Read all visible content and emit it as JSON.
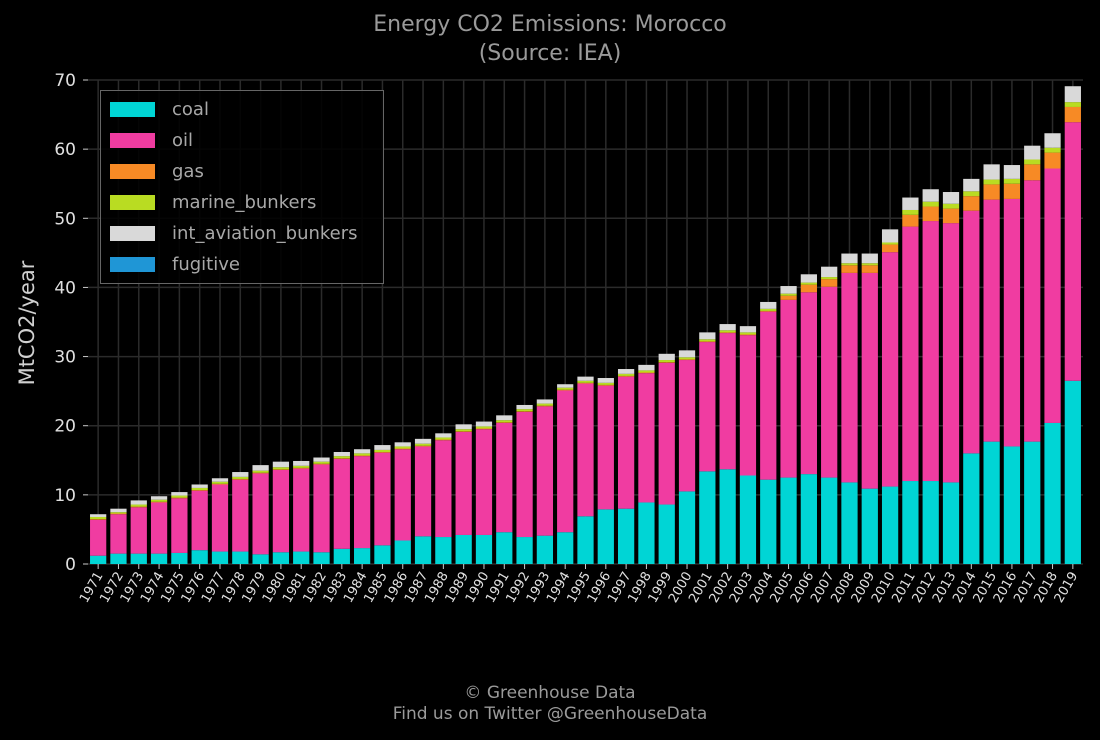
{
  "chart_data": {
    "type": "bar",
    "stacked": true,
    "title": "Energy CO2 Emissions: Morocco",
    "subtitle": "(Source: IEA)",
    "xlabel": "",
    "ylabel": "MtCO2/year",
    "ylim": [
      0,
      70
    ],
    "yticks": [
      0,
      10,
      20,
      30,
      40,
      50,
      60,
      70
    ],
    "grid": true,
    "legend_position": "top-left",
    "categories": [
      "1971",
      "1972",
      "1973",
      "1974",
      "1975",
      "1976",
      "1977",
      "1978",
      "1979",
      "1980",
      "1981",
      "1982",
      "1983",
      "1984",
      "1985",
      "1986",
      "1987",
      "1988",
      "1989",
      "1990",
      "1991",
      "1992",
      "1993",
      "1994",
      "1995",
      "1996",
      "1997",
      "1998",
      "1999",
      "2000",
      "2001",
      "2002",
      "2003",
      "2004",
      "2005",
      "2006",
      "2007",
      "2008",
      "2009",
      "2010",
      "2011",
      "2012",
      "2013",
      "2014",
      "2015",
      "2016",
      "2017",
      "2018",
      "2019"
    ],
    "series": [
      {
        "name": "coal",
        "color": "#00d5d5",
        "values": [
          1.2,
          1.5,
          1.5,
          1.5,
          1.6,
          2.0,
          1.8,
          1.8,
          1.4,
          1.7,
          1.8,
          1.7,
          2.2,
          2.3,
          2.7,
          3.4,
          4.0,
          3.9,
          4.2,
          4.2,
          4.6,
          3.9,
          4.1,
          4.6,
          6.9,
          7.9,
          8.0,
          8.9,
          8.6,
          10.5,
          13.4,
          13.7,
          12.8,
          12.2,
          12.5,
          13.0,
          12.5,
          11.8,
          10.9,
          11.2,
          12.0,
          12.0,
          11.8,
          16.0,
          17.7,
          17.0,
          17.7,
          20.4,
          26.5
        ]
      },
      {
        "name": "oil",
        "color": "#f03ca1",
        "values": [
          5.2,
          5.7,
          6.7,
          7.4,
          7.9,
          8.6,
          9.7,
          10.4,
          11.7,
          11.9,
          12.0,
          12.7,
          13.0,
          13.3,
          13.4,
          13.2,
          13.0,
          14.0,
          14.9,
          15.3,
          15.8,
          18.1,
          18.7,
          20.5,
          19.2,
          17.9,
          19.1,
          18.7,
          20.5,
          19.0,
          18.7,
          19.7,
          20.3,
          24.3,
          25.7,
          26.3,
          27.6,
          30.3,
          31.2,
          33.9,
          36.8,
          37.6,
          37.5,
          35.1,
          35.0,
          35.8,
          37.8,
          36.8,
          37.4
        ]
      },
      {
        "name": "gas",
        "color": "#f78a25",
        "values": [
          0.1,
          0.1,
          0.1,
          0.1,
          0.1,
          0.1,
          0.1,
          0.1,
          0.1,
          0.1,
          0.1,
          0.1,
          0.1,
          0.1,
          0.1,
          0.1,
          0.1,
          0.1,
          0.1,
          0.1,
          0.1,
          0.1,
          0.1,
          0.1,
          0.1,
          0.1,
          0.1,
          0.1,
          0.1,
          0.1,
          0.1,
          0.1,
          0.1,
          0.1,
          0.6,
          1.1,
          1.1,
          1.1,
          1.1,
          1.1,
          1.7,
          2.1,
          2.1,
          2.1,
          2.2,
          2.2,
          2.3,
          2.3,
          2.2
        ]
      },
      {
        "name": "marine_bunkers",
        "color": "#b9dc22",
        "values": [
          0.3,
          0.2,
          0.3,
          0.3,
          0.3,
          0.3,
          0.3,
          0.3,
          0.3,
          0.3,
          0.3,
          0.3,
          0.3,
          0.3,
          0.3,
          0.3,
          0.3,
          0.3,
          0.3,
          0.3,
          0.3,
          0.3,
          0.3,
          0.3,
          0.3,
          0.3,
          0.3,
          0.3,
          0.3,
          0.3,
          0.3,
          0.3,
          0.3,
          0.3,
          0.3,
          0.3,
          0.3,
          0.3,
          0.3,
          0.3,
          0.7,
          0.7,
          0.7,
          0.7,
          0.7,
          0.7,
          0.7,
          0.7,
          0.7
        ]
      },
      {
        "name": "int_aviation_bunkers",
        "color": "#d9d9d9",
        "values": [
          0.4,
          0.5,
          0.6,
          0.5,
          0.5,
          0.5,
          0.5,
          0.7,
          0.8,
          0.8,
          0.7,
          0.6,
          0.6,
          0.6,
          0.7,
          0.6,
          0.7,
          0.6,
          0.7,
          0.7,
          0.7,
          0.6,
          0.6,
          0.5,
          0.6,
          0.7,
          0.7,
          0.8,
          0.9,
          1.0,
          1.0,
          0.9,
          0.9,
          1.0,
          1.1,
          1.2,
          1.5,
          1.4,
          1.4,
          1.9,
          1.8,
          1.8,
          1.7,
          1.8,
          2.2,
          2.0,
          2.0,
          2.1,
          2.3
        ]
      },
      {
        "name": "fugitive",
        "color": "#1f96d6",
        "values": [
          0,
          0,
          0,
          0,
          0,
          0,
          0,
          0,
          0,
          0,
          0,
          0,
          0,
          0,
          0,
          0,
          0,
          0,
          0,
          0,
          0,
          0,
          0,
          0,
          0,
          0,
          0,
          0,
          0,
          0,
          0,
          0,
          0,
          0,
          0,
          0,
          0,
          0,
          0,
          0,
          0,
          0,
          0,
          0,
          0,
          0,
          0,
          0,
          0
        ]
      }
    ]
  },
  "footer": {
    "line1": "© Greenhouse Data",
    "line2": "Find us on Twitter @GreenhouseData"
  },
  "colors": {
    "background": "#000000",
    "grid": "#2b2b2b",
    "axis": "#cccccc"
  }
}
